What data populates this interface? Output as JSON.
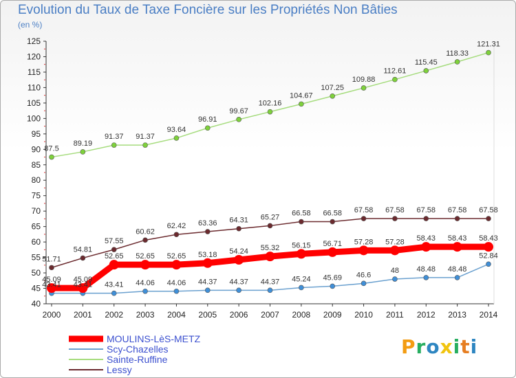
{
  "chart_data": {
    "type": "line",
    "title": "Evolution du Taux de Taxe Foncière sur les Propriétés Non Bâties",
    "subtitle": "(en %)",
    "xlabel": "",
    "ylabel": "",
    "ylim": [
      40,
      125
    ],
    "ytick_step": 5,
    "grid": false,
    "legend_position": "bottom-left",
    "x": [
      "2000",
      "2001",
      "2002",
      "2003",
      "2004",
      "2005",
      "2006",
      "2007",
      "2008",
      "2009",
      "2010",
      "2011",
      "2012",
      "2013",
      "2014"
    ],
    "series": [
      {
        "name": "MOULINS-LèS-METZ",
        "color": "#ff0000",
        "marker_color": "#ff0000",
        "values": [
          45.09,
          45.09,
          52.65,
          52.65,
          52.65,
          53.18,
          54.24,
          55.32,
          56.15,
          56.71,
          57.28,
          57.28,
          58.43,
          58.43,
          58.43
        ],
        "labels": [
          "45.09",
          "45.09",
          "52.65",
          "52.65",
          "52.65",
          "53.18",
          "54.24",
          "55.32",
          "56.15",
          "56.71",
          "57.28",
          "57.28",
          "58.43",
          "58.43",
          "58.43"
        ]
      },
      {
        "name": "Scy-Chazelles",
        "color": "#6aa0cf",
        "marker_color": "#3f8fd8",
        "values": [
          43.41,
          43.41,
          43.41,
          44.06,
          44.06,
          44.37,
          44.37,
          44.37,
          45.24,
          45.69,
          46.6,
          48,
          48.48,
          48.48,
          52.84
        ],
        "labels": [
          "43.41",
          "43.41",
          "43.41",
          "44.06",
          "44.06",
          "44.37",
          "44.37",
          "44.37",
          "45.24",
          "45.69",
          "46.6",
          "48",
          "48.48",
          "48.48",
          "52.84"
        ]
      },
      {
        "name": "Sainte-Ruffine",
        "color": "#a6dc7e",
        "marker_color": "#7ed13b",
        "values": [
          87.5,
          89.19,
          91.37,
          91.37,
          93.64,
          96.91,
          99.67,
          102.16,
          104.67,
          107.25,
          109.88,
          112.61,
          115.45,
          118.33,
          121.31
        ],
        "labels": [
          "87.5",
          "89.19",
          "91.37",
          "91.37",
          "93.64",
          "96.91",
          "99.67",
          "102.16",
          "104.67",
          "107.25",
          "109.88",
          "112.61",
          "115.45",
          "118.33",
          "121.31"
        ]
      },
      {
        "name": "Lessy",
        "color": "#6b2a2e",
        "marker_color": "#6b2a2e",
        "values": [
          51.71,
          54.81,
          57.55,
          60.62,
          62.42,
          63.36,
          64.31,
          65.27,
          66.58,
          66.58,
          67.58,
          67.58,
          67.58,
          67.58,
          67.58
        ],
        "labels": [
          "51.71",
          "54.81",
          "57.55",
          "60.62",
          "62.42",
          "63.36",
          "64.31",
          "65.27",
          "66.58",
          "66.58",
          "67.58",
          "67.58",
          "67.58",
          "67.58",
          "67.58"
        ]
      }
    ]
  },
  "logo": {
    "letters": [
      "P",
      "r",
      "o",
      "x",
      "i",
      "t",
      "i"
    ],
    "colors": [
      "#f39c12",
      "#27ae60",
      "#2e86c1",
      "#f1c40f",
      "#27ae60",
      "#e67e22",
      "#2e86c1"
    ]
  }
}
